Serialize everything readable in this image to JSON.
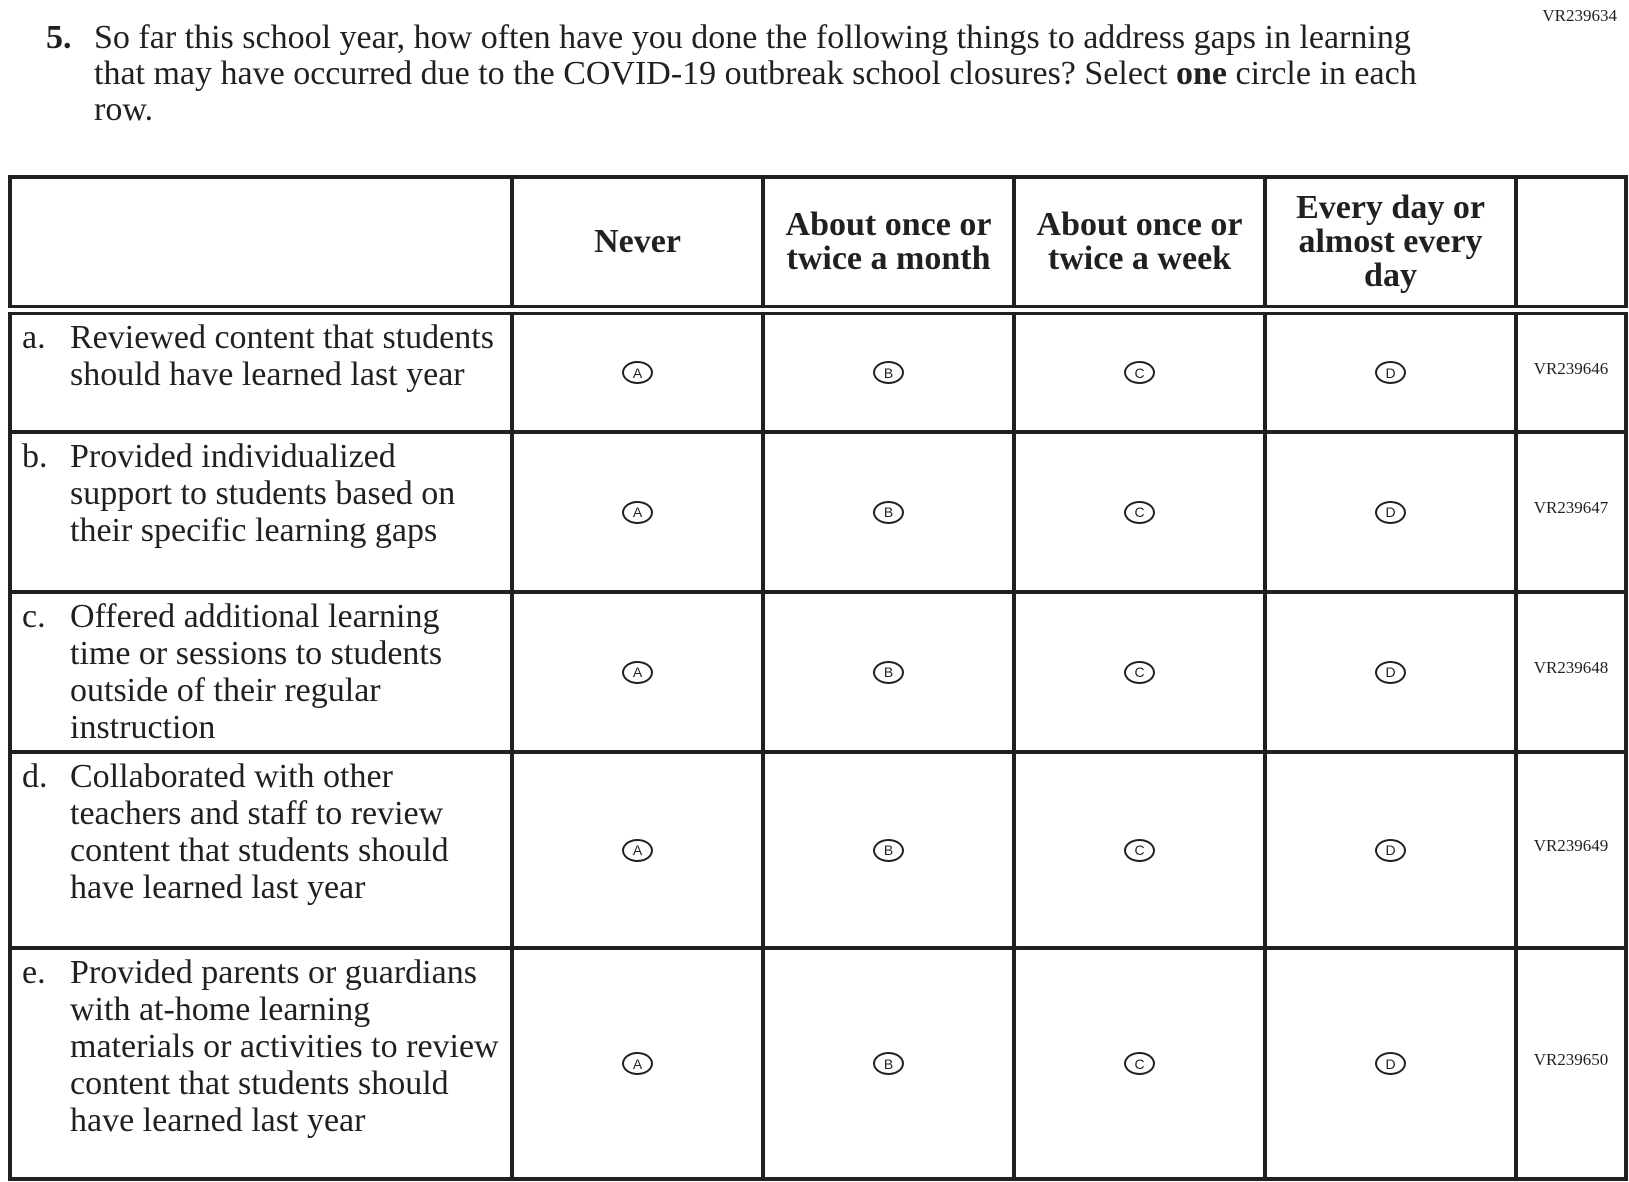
{
  "item_code": "VR239634",
  "question": {
    "number": "5.",
    "text_before": "So far this school year, how often have you done the following things to address gaps in learning that may have occurred due to the COVID-19 outbreak school closures? Select ",
    "text_bold": "one",
    "text_after": " circle in each row."
  },
  "columns": [
    "Never",
    "About once or twice a month",
    "About once or twice a week",
    "Every day or almost every day"
  ],
  "rows": [
    {
      "letter": "a.",
      "text": "Reviewed content that students should have learned last year",
      "code": "VR239646",
      "options": [
        "A",
        "B",
        "C",
        "D"
      ]
    },
    {
      "letter": "b.",
      "text": "Provided individualized support to students based on their specific learning gaps",
      "code": "VR239647",
      "options": [
        "A",
        "B",
        "C",
        "D"
      ]
    },
    {
      "letter": "c.",
      "text": "Offered additional learning time or sessions to students outside of their regular instruction",
      "code": "VR239648",
      "options": [
        "A",
        "B",
        "C",
        "D"
      ]
    },
    {
      "letter": "d.",
      "text": "Collaborated with other teachers and staff to review content that students should have learned last year",
      "code": "VR239649",
      "options": [
        "A",
        "B",
        "C",
        "D"
      ]
    },
    {
      "letter": "e.",
      "text": "Provided parents or guardians with at-home learning materials or activities to review content that students should have learned last year",
      "code": "VR239650",
      "options": [
        "A",
        "B",
        "C",
        "D"
      ]
    }
  ]
}
